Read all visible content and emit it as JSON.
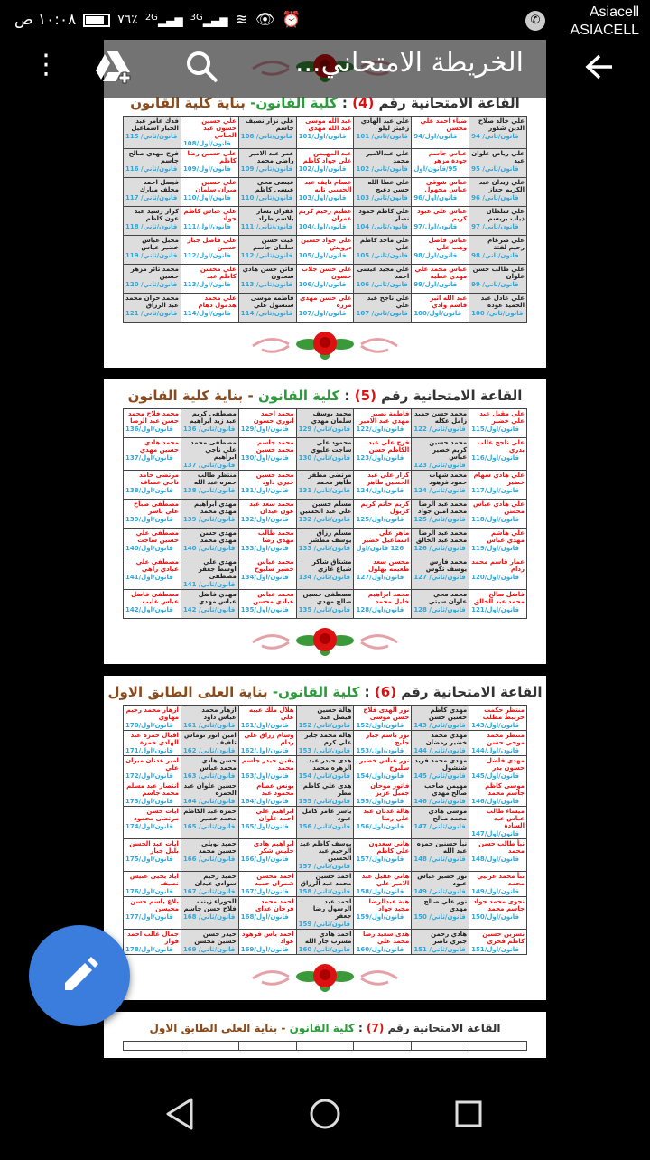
{
  "status": {
    "time": "١٠:٠٨ ص",
    "battery": "٧٦٪",
    "battery_level": 0.76,
    "net1": "2G",
    "net2": "3G",
    "carrier1": "Asiacell",
    "carrier2": "ASIACELL"
  },
  "toolbar": {
    "title": "الخريطة الامتحاني...",
    "icons": [
      "back-arrow-icon",
      "search-icon",
      "drive-add-icon",
      "more-vert-icon"
    ]
  },
  "fab": {
    "icon": "edit-pencil-icon",
    "color": "#3b7ddd"
  },
  "colors": {
    "first_year_name": "#e11",
    "second_year_name": "#222",
    "code": "#2aa8e0",
    "hall_no": "#d11",
    "college": "#2a9d3a",
    "building": "#8b4a1b"
  },
  "pages": [
    {
      "title": {
        "t": "القاعة الامتحانية رقم",
        "n": "(4)",
        "sep": " : ",
        "c": "كلية القانون-",
        "b": "بناية كلية القانون"
      },
      "rows": [
        [
          [
            "علي خالد صلاح الدين شكور",
            "قانون/ثاني/ 94"
          ],
          [
            "ضياء احمد علي محسن",
            "قانون/اول/94"
          ],
          [
            "علي عبد الهادي زعيتر ليلو",
            "قانون/ثاني/ 101"
          ],
          [
            "عبد الله موسى عبد الله مهدي",
            "قانون/اول/101"
          ],
          [
            "علي نزار نصيف جاسم",
            "قانون/ثاني/ 108"
          ],
          [
            "علي حسين حسون عبد العباس",
            "قانون/اول/108"
          ],
          [
            "فدك عامر عبد الجبار اسماعيل",
            "قانون/ثاني/ 115"
          ]
        ],
        [
          [
            "علي رياض علوان عبد",
            "قانون/ثاني/ 95"
          ],
          [
            "عباس جاسم جودة مزهر",
            "95/قانون/اول"
          ],
          [
            "علي عبدالامير محمد",
            "قانون/ثاني/ 102"
          ],
          [
            "عبد المهيمن علي جواد كاظم",
            "قانون/اول/102"
          ],
          [
            "عمر عبد الامير راضي محمد",
            "قانون/ثاني/ 109"
          ],
          [
            "علي حسين رضا كاظم",
            "قانون/اول/109"
          ],
          [
            "فرح مهدي صالح جاسم",
            "قانون/ثاني/ 116"
          ]
        ],
        [
          [
            "علي زيدان عبد الكريم جعاز",
            "قانون/ثاني/ 96"
          ],
          [
            "عباس شوقي عباس مجهول",
            "قانون/اول/96"
          ],
          [
            "علي عطا الله حسن دعيج",
            "قانون/ثاني/ 103"
          ],
          [
            "عصام نايف عبد الحسين تايه",
            "قانون/اول/103"
          ],
          [
            "عيسى محي عيسى كاظم",
            "قانون/ثاني/ 110"
          ],
          [
            "علي حسين ميران سلمان",
            "قانون/اول/110"
          ],
          [
            "فيصل احمد مخلف مبارك",
            "قانون/ثاني/ 117"
          ]
        ],
        [
          [
            "علي سلطان ذياب بريسم",
            "قانون/ثاني/ 97"
          ],
          [
            "عباس علي عبود كريم",
            "قانون/اول/97"
          ],
          [
            "علي كاظم حمود نصار",
            "قانون/ثاني/ 104"
          ],
          [
            "عظيم رحيم كريم عمران",
            "قانون/اول/104"
          ],
          [
            "غفران بشار بلاسم طراد",
            "قانون/ثاني/ 111"
          ],
          [
            "علي عباس كاظم جواد",
            "قانون/اول/111"
          ],
          [
            "كرار رشيد عبد عون كاظم",
            "قانون/ثاني/ 118"
          ]
        ],
        [
          [
            "علي ضرغام رحيم لفتة",
            "قانون/ثاني/ 98"
          ],
          [
            "عباس فاضل وهب علي",
            "قانون/اول/98"
          ],
          [
            "علي ماجد كاظم علي",
            "قانون/ثاني/ 105"
          ],
          [
            "علي جواد حسين درويش",
            "قانون/اول/105"
          ],
          [
            "غيث حسن سلمان جاسم",
            "قانون/ثاني/ 112"
          ],
          [
            "علي فاضل جبار حسين",
            "قانون/اول/112"
          ],
          [
            "مجبل عباس خضير عباس",
            "قانون/ثاني/ 119"
          ]
        ],
        [
          [
            "علي طالب حسن علوان",
            "قانون/ثاني/ 99"
          ],
          [
            "عباس محمد علي مهدي عطيه",
            "قانون/اول/99"
          ],
          [
            "علي مجيد عيسى احمد",
            "قانون/ثاني/ 106"
          ],
          [
            "علي حسن جلاب حسون",
            "قانون/اول/106"
          ],
          [
            "فاتن حسن هادي سعدون",
            "قانون/ثاني/ 113"
          ],
          [
            "علي محسن كاظم عبد",
            "قانون/اول/113"
          ],
          [
            "محمد ثائر مزهر حسين",
            "قانون/ثاني/ 120"
          ]
        ],
        [
          [
            "علي عادل عبد الحميد عوده",
            "قانون/ثاني/ 100"
          ],
          [
            "عبد الله اثير قاسم وادي",
            "قانون/اول/100"
          ],
          [
            "علي ناجح عبد علي",
            "قانون/ثاني/ 107"
          ],
          [
            "علي حسن مهدي مرزه",
            "قانون/اول/107"
          ],
          [
            "فاطمه موسى شنشول علي",
            "قانون/ثاني/ 114"
          ],
          [
            "علي محمد هذمول دهام",
            "قانون/اول/114"
          ],
          [
            "محمد حران محمد عبد الرزاق",
            "قانون/ثاني/ 121"
          ]
        ]
      ]
    },
    {
      "title": {
        "t": "القاعة الامتحانية رقم",
        "n": "(5)",
        "sep": " : ",
        "c": "كلية القانون",
        "b": "- بناية كلية القانون"
      },
      "rows": [
        [
          [
            "علي مقبل عبد علي خضير",
            "قانون/اول/115"
          ],
          [
            "محمد حسن حميد زامل عكله",
            "قانون/ثاني/ 122"
          ],
          [
            "فاطمة نصير مهدي عبد الامير",
            "قانون/اول/122"
          ],
          [
            "محمد يوسف سلمان مهدي",
            "قانون/ثاني/ 129"
          ],
          [
            "محمد احمد انوري حسون",
            "قانون/اول/129"
          ],
          [
            "مصطفى كريم عبد زيد ابراهيم",
            "قانون/ثاني/ 136"
          ],
          [
            "محمد فلاح محمد حسن عبد الرضا",
            "قانون/اول/136"
          ]
        ],
        [
          [
            "علي ناجح غالب بدري",
            "قانون/اول/116"
          ],
          [
            "محمد حسين كريم خضير عباس",
            "قانون/ثاني/ 123"
          ],
          [
            "فرح علي عبد الكاظم حسن",
            "قانون/اول/123"
          ],
          [
            "محمود علي ساجت عليوي",
            "قانون/ثاني/ 130"
          ],
          [
            "محمد جاسم محمد حسين",
            "قانون/اول/130"
          ],
          [
            "مصطفى محمد علي ناجي ابراهيم",
            "قانون/ثاني/ 137"
          ],
          [
            "محمد هادي حسين مهدي",
            "قانون/اول/137"
          ]
        ],
        [
          [
            "علي هادي سهام خضير",
            "قانون/اول/117"
          ],
          [
            "محمد شهاب حمود فرهود",
            "قانون/ثاني/ 124"
          ],
          [
            "كرار علي عبد الحسين طاهر",
            "قانون/اول/124"
          ],
          [
            "مرتضى مظفر طاهر محمد",
            "قانون/ثاني/ 131"
          ],
          [
            "محمد حسين خيري داود",
            "قانون/اول/131"
          ],
          [
            "منتظر طالب حمزه عبد الله",
            "قانون/ثاني/ 138"
          ],
          [
            "مرتضى حامد ناجي عساف",
            "قانون/اول/138"
          ]
        ],
        [
          [
            "علي هادي عباس محسن",
            "قانون/اول/118"
          ],
          [
            "محمد عبد الرضا محمد امين جواد",
            "قانون/ثاني/ 125"
          ],
          [
            "كريم حاتم كريم كريول",
            "قانون/اول/125"
          ],
          [
            "مسلم حسين علي عبد الحسين",
            "قانون/ثاني/ 132"
          ],
          [
            "محمد سعد عبد عون عيدان",
            "قانون/اول/132"
          ],
          [
            "مهدي ابراهيم مهدي محمد",
            "قانون/ثاني/ 139"
          ],
          [
            "مصطفى صباح علي ياسر",
            "قانون/اول/139"
          ]
        ],
        [
          [
            "علي هاشم مهدي عباس",
            "قانون/اول/119"
          ],
          [
            "محمد عبد الرضا محمد عبد الخالق",
            "قانون/ثاني/ 126"
          ],
          [
            "ماهر علي اسماعيل خضير",
            "126 قانون/اول"
          ],
          [
            "مسلم رزاق يوسف مطشر",
            "قانون/ثاني/ 133"
          ],
          [
            "محمد طالب مهدي رضا",
            "قانون/اول/133"
          ],
          [
            "مهدي حسن مهدي محمد",
            "قانون/ثاني/ 140"
          ],
          [
            "مصطفى علي حسين ساجت",
            "قانون/اول/140"
          ]
        ],
        [
          [
            "عمار قاسم محمد ردام",
            "قانون/اول/120"
          ],
          [
            "محمد فارس يوسف تكوس",
            "قانون/ثاني/ 127"
          ],
          [
            "محسن سعد طعيمه بهلول",
            "قانون/اول/127"
          ],
          [
            "مشتاق شاكر شياع غازي",
            "قانون/ثاني/ 134"
          ],
          [
            "محمد عباس خضير سلبوح",
            "قانون/اول/134"
          ],
          [
            "مهدي علي اوسط جعفر مصطفى",
            "قانون/ثاني/ 141"
          ],
          [
            "مصطفى علي عبادي راهي",
            "قانون/اول/141"
          ]
        ],
        [
          [
            "فاضل صالح محمد عبد الخالق",
            "قانون/اول/121"
          ],
          [
            "محمد محي علوان سيتي",
            "قانون/ثاني/ 128"
          ],
          [
            "محمد ابراهيم خليل محمد",
            "قانون/اول/128"
          ],
          [
            "مصطفى حسين صالح مهدي",
            "قانون/ثاني/ 135"
          ],
          [
            "محمد عباس عبادي محسن",
            "قانون/اول/135"
          ],
          [
            "مهدي فاضل عباس مهدي",
            "قانون/ثاني/ 142"
          ],
          [
            "مصطفى فاضل عباس غليب",
            "قانون/اول/142"
          ]
        ]
      ]
    },
    {
      "title": {
        "t": "القاعة الامتحانية رقم",
        "n": "(6)",
        "sep": " : ",
        "c": "كلية القانون-",
        "b": "بناية العلى الطابق الاول"
      },
      "rows": [
        [
          [
            "منتظر حكمت خريبط مطلب",
            "قانون/اول/143"
          ],
          [
            "مهدي كاظم حسين حسن",
            "قانون/ثاني/ 143"
          ],
          [
            "نور الهدى فلاح حسن موسى",
            "قانون/اول/152"
          ],
          [
            "هالة حسين فيصل عبد",
            "قانون/ثاني/ 152"
          ],
          [
            "هلال ملك عبيه علي",
            "قانون/اول/161"
          ],
          [
            "ازهار محمد عباس داود",
            "قانون/ثاني/ 161"
          ],
          [
            "ازهار محمد رحيم مهاوي",
            "قانون/اول/170"
          ]
        ],
        [
          [
            "منتظر محمد موحي حسن",
            "قانون/اول/144"
          ],
          [
            "مهدي محمد خضير رمضان",
            "قانون/ثاني/ 144"
          ],
          [
            "نور باسم جبار جليج",
            "قانون/اول/153"
          ],
          [
            "هالة محمد جابر علي كرم",
            "قانون/ثاني/ 153"
          ],
          [
            "وسام رزاق علي ردام",
            "قانون/اول/162"
          ],
          [
            "امين انور نوماس تلفيف",
            "قانون/ثاني/ 162"
          ],
          [
            "اقبال حمزه عبد الهادي حمزة",
            "قانون/اول/171"
          ]
        ],
        [
          [
            "مهدي فاضل حسون بدر",
            "قانون/اول/145"
          ],
          [
            "مهدي محمد فريد شنشول",
            "قانون/ثاني/ 145"
          ],
          [
            "نور عباس خضير سلبوح",
            "قانون/اول/154"
          ],
          [
            "هدى حيدر عبد الزهره محمد",
            "قانون/ثاني/ 154"
          ],
          [
            "يقين حيدر جاسم محمد",
            "قانون/اول/163"
          ],
          [
            "حسن هادي محمد عباس",
            "قانون/ثاني/ 163"
          ],
          [
            "امير عدنان ميران علي",
            "قانون/اول/172"
          ]
        ],
        [
          [
            "موسى كاظم جاسم محمد",
            "قانون/اول/146"
          ],
          [
            "مهيمن صاحب صالح مهدي",
            "قانون/ثاني/ 146"
          ],
          [
            "فاتور موحان جميل عزيز",
            "قانون/اول/155"
          ],
          [
            "هدى علي كاظم مطر",
            "قانون/ثاني/ 155"
          ],
          [
            "يونس عصام محمود عبد",
            "قانون/اول/164"
          ],
          [
            "حسين علوان عبد الحمزه",
            "قانون/ثاني/ 164"
          ],
          [
            "انتصار عبد مسلم محمد جاسم",
            "قانون/اول/173"
          ]
        ],
        [
          [
            "ميساء طالب عباس عبد السادة",
            "قانون/اول/147"
          ],
          [
            "موسى هادي محمد صالح",
            "قانون/ثاني/ 147"
          ],
          [
            "هالة عدنان عبد علي رضا",
            "قانون/اول/156"
          ],
          [
            "ياسر عامر كامل عبود",
            "قانون/ثاني/ 156"
          ],
          [
            "ابراهيم علي احمد علوان",
            "قانون/اول/165"
          ],
          [
            "حمزه عبد الكاظم محمد خضير",
            "قانون/ثاني/ 165"
          ],
          [
            "ايات حسن مرتضى محمود",
            "قانون/اول/174"
          ]
        ],
        [
          [
            "نبأ طالب حسن محمد",
            "قانون/اول/148"
          ],
          [
            "نبأ حسنين حمزه عبد الله",
            "قانون/ثاني/ 148"
          ],
          [
            "هاني سعدون علي كاظم",
            "قانون/اول/157"
          ],
          [
            "يوسف كاظم عبد الرحيم عبد الحسين",
            "قانون/ثاني/ 157"
          ],
          [
            "ابراهيم هادي حليس شكر",
            "قانون/اول/166"
          ],
          [
            "حميد تويلي حسين محمد",
            "قانون/ثاني/ 166"
          ],
          [
            "ايات عبد الحسن بليل جبار",
            "قانون/اول/175"
          ]
        ],
        [
          [
            "نبأ محمد عربيي محمد",
            "قانون/اول/149"
          ],
          [
            "نور خضير عباس عبود",
            "قانون/ثاني/ 149"
          ],
          [
            "هاني عقيل عبد الامير علي",
            "قانون/اول/158"
          ],
          [
            "احمد حسين محمد عبد الرزاق",
            "قانون/ثاني/ 158"
          ],
          [
            "احمد محسن شمران حميد",
            "قانون/اول/167"
          ],
          [
            "حميد رحيم سوادي عيدان",
            "قانون/ثاني/ 167"
          ],
          [
            "اياد يحيى عبيس نصيف",
            "قانون/اول/176"
          ]
        ],
        [
          [
            "نجوى محمد جواد جاسم محمد",
            "قانون/اول/150"
          ],
          [
            "نور علي صالح مهدي",
            "قانون/ثاني/ 150"
          ],
          [
            "هبة عبدالرضا مجيد جواد",
            "قانون/اول/159"
          ],
          [
            "احمد عبد الرسول رضا جعفر",
            "قانون/ثاني/ 159"
          ],
          [
            "احمد محمد فرحان عداي",
            "قانون/اول/168"
          ],
          [
            "الحوراء زينب فلاح حسن جاسم",
            "قانون/ثاني/ 168"
          ],
          [
            "بلاغ ياسم حسن محيسن",
            "قانون/اول/177"
          ]
        ],
        [
          [
            "نسرين حسين كاظم فخري",
            "قانون/اول/151"
          ],
          [
            "هادي رحمن جبري ناصر",
            "قانون/ثاني/ 151"
          ],
          [
            "هدى سعيد رضا محمد علي",
            "قانون/اول/160"
          ],
          [
            "احمد هادي مسرب جار الله",
            "قانون/ثاني/ 160"
          ],
          [
            "احمد ياس فرهود عواد",
            "قانون/اول/169"
          ],
          [
            "حيدر حسن حسين محسن",
            "قانون/ثاني/ 169"
          ],
          [
            "جمال غالب احمد فواز",
            "قانون/اول/178"
          ]
        ]
      ]
    },
    {
      "title": {
        "t": "القاعة الامتحانية رقم",
        "n": "(7)",
        "sep": " : ",
        "c": "كلية القانون",
        "b": "- بناية العلى الطابق الاول"
      },
      "rows": []
    }
  ]
}
